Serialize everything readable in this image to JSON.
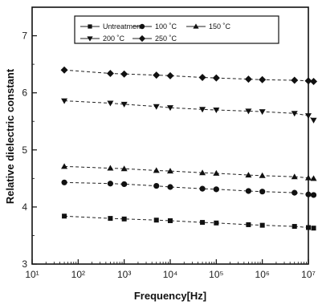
{
  "chart_data": {
    "type": "line",
    "title": "",
    "xlabel": "Frequency[Hz]",
    "ylabel": "Relative dielectric constant",
    "xscale": "log",
    "xlim": [
      10,
      10000000
    ],
    "ylim": [
      3,
      7.5
    ],
    "grid": false,
    "legend_position": "top",
    "x_tick_labels": [
      "10¹",
      "10²",
      "10³",
      "10⁴",
      "10⁵",
      "10⁶",
      "10⁷"
    ],
    "y_tick_labels": [
      "3",
      "4",
      "5",
      "6",
      "7"
    ],
    "x": [
      50,
      500,
      1000,
      5000,
      10000,
      50000,
      100000,
      500000,
      1000000,
      5000000,
      10000000,
      13000000
    ],
    "series": [
      {
        "name": "Untreatment",
        "marker": "square",
        "values": [
          3.84,
          3.8,
          3.79,
          3.77,
          3.76,
          3.73,
          3.72,
          3.69,
          3.68,
          3.66,
          3.64,
          3.63
        ]
      },
      {
        "name": "100 ˚C",
        "marker": "circle",
        "values": [
          4.43,
          4.41,
          4.4,
          4.37,
          4.35,
          4.32,
          4.31,
          4.28,
          4.27,
          4.25,
          4.22,
          4.21
        ]
      },
      {
        "name": "150 ˚C",
        "marker": "triangle-up",
        "values": [
          4.71,
          4.68,
          4.67,
          4.64,
          4.63,
          4.6,
          4.59,
          4.56,
          4.55,
          4.53,
          4.51,
          4.5
        ]
      },
      {
        "name": "200 ˚C",
        "marker": "triangle-down",
        "values": [
          5.86,
          5.82,
          5.8,
          5.76,
          5.74,
          5.71,
          5.7,
          5.68,
          5.67,
          5.64,
          5.6,
          5.52
        ]
      },
      {
        "name": "250 ˚C",
        "marker": "diamond",
        "values": [
          6.4,
          6.34,
          6.33,
          6.31,
          6.3,
          6.27,
          6.26,
          6.24,
          6.23,
          6.22,
          6.21,
          6.2
        ]
      }
    ]
  }
}
